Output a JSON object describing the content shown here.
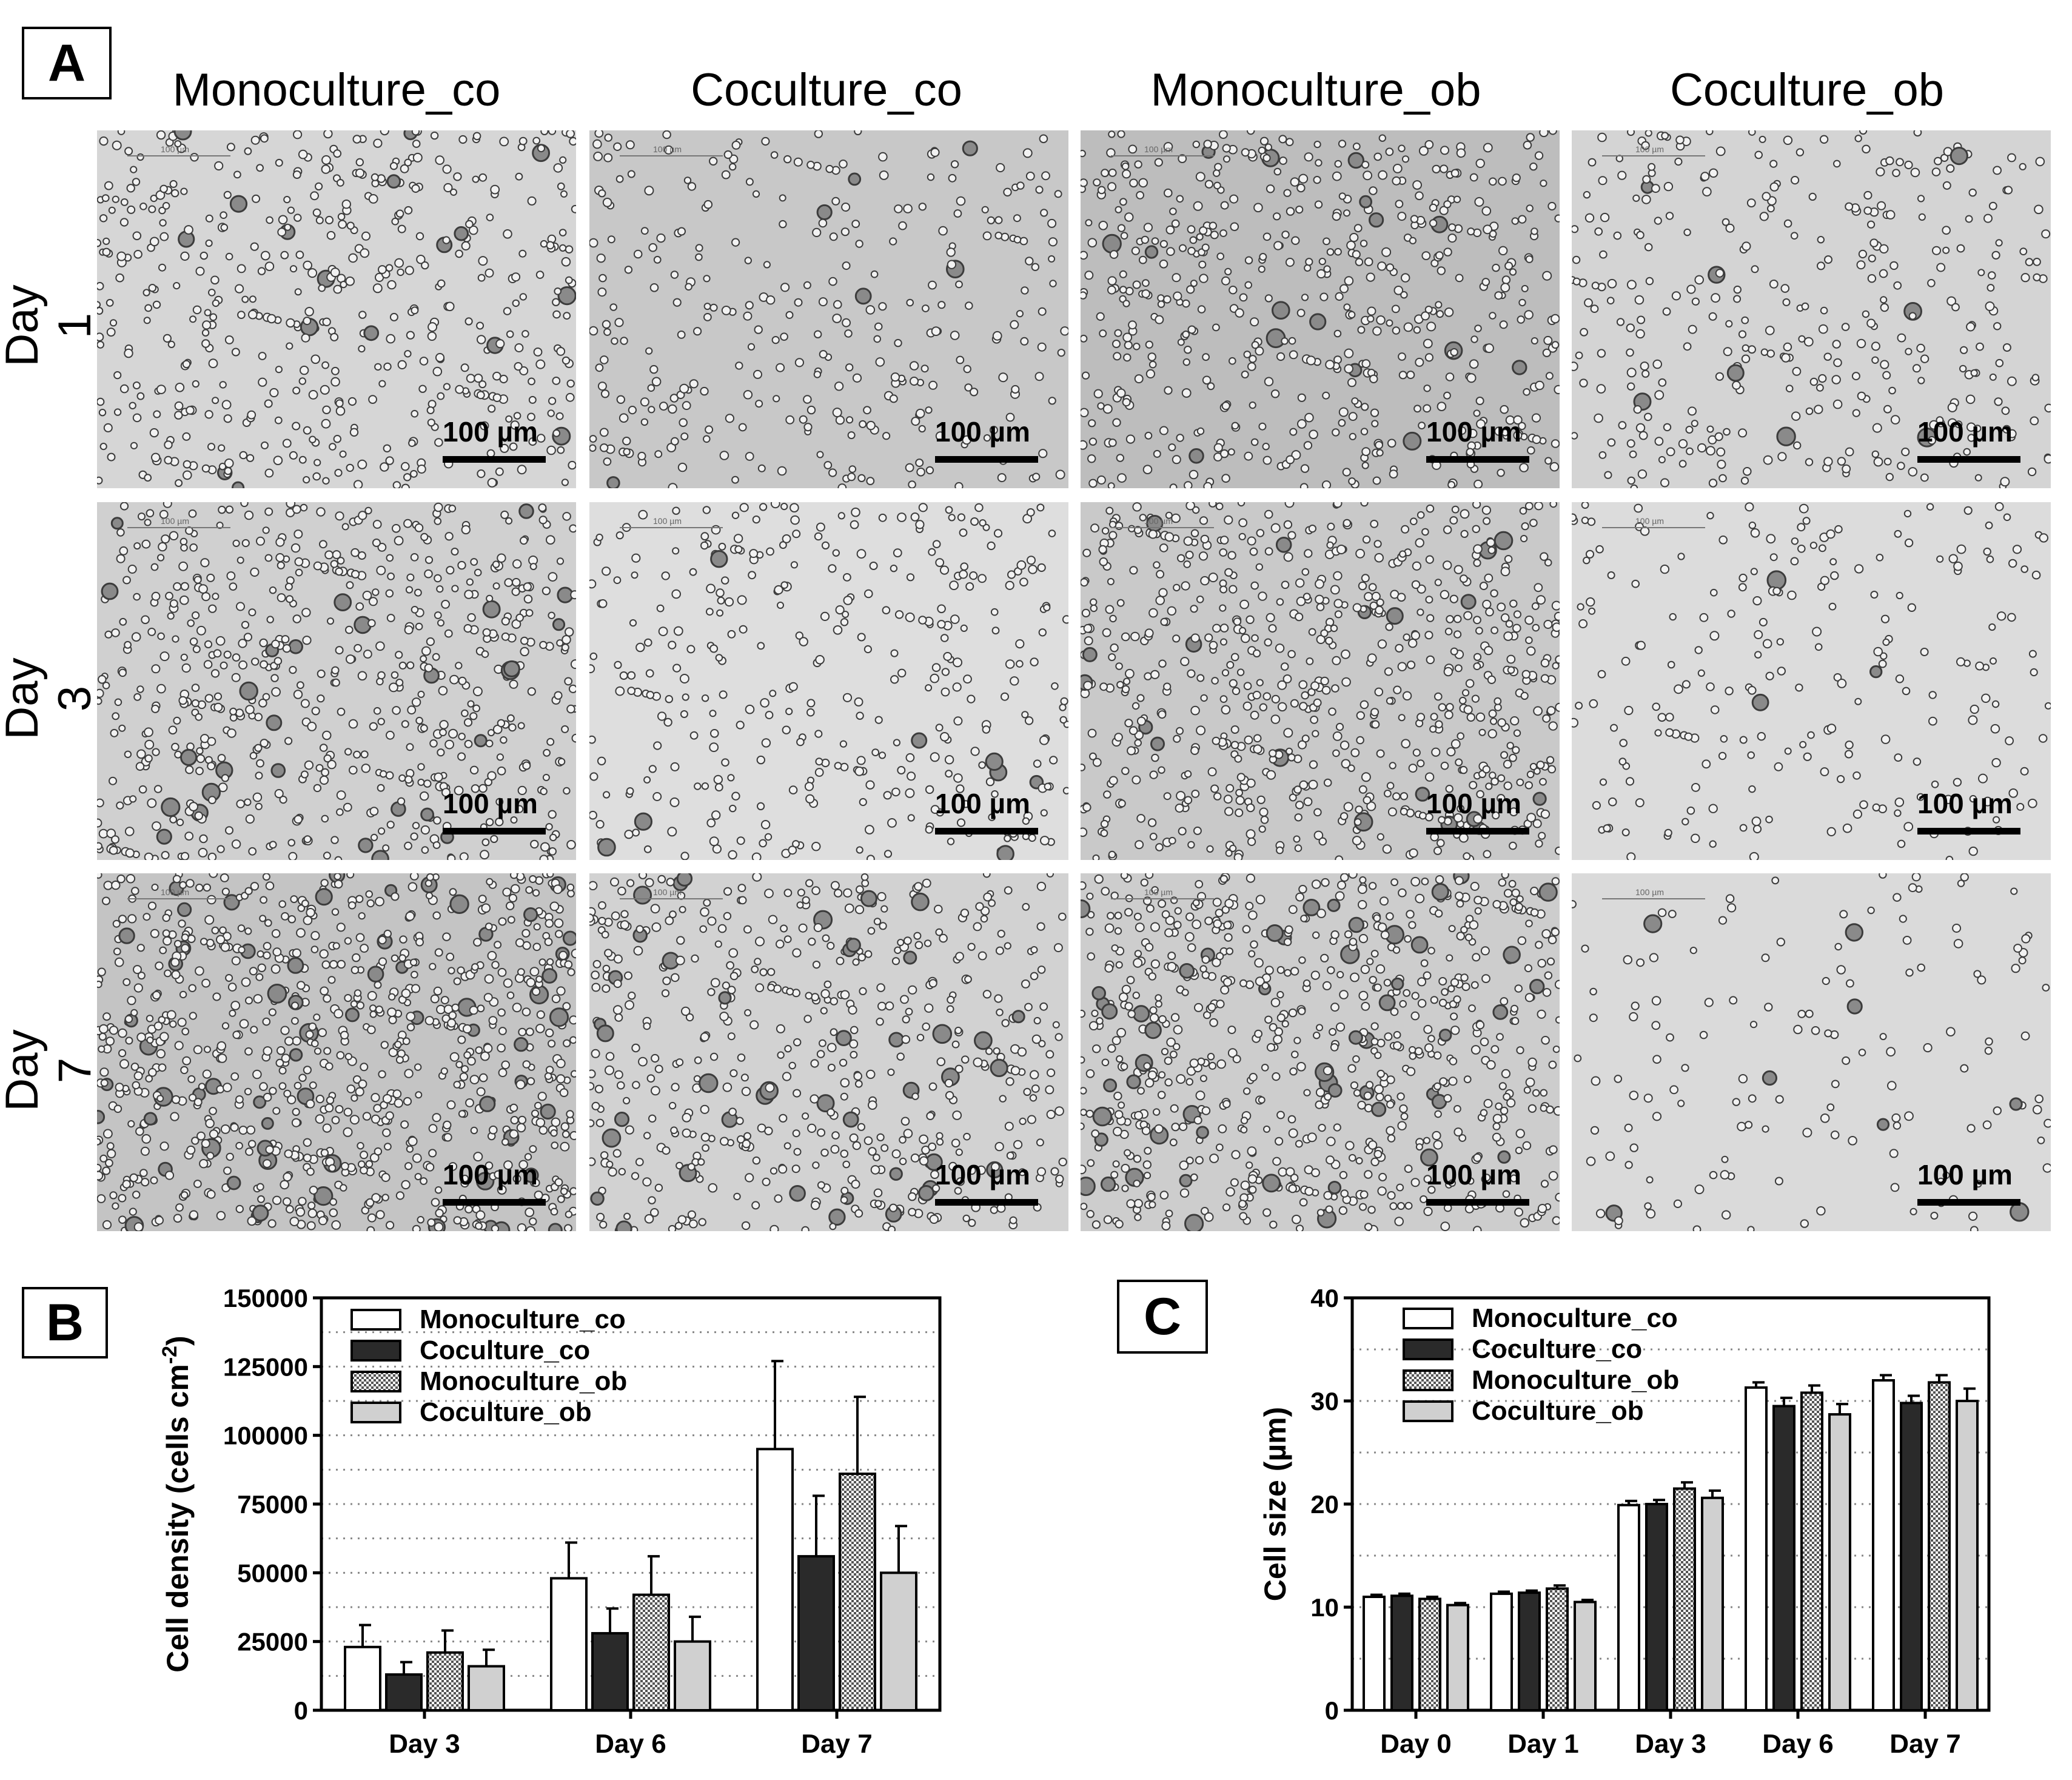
{
  "panel_a": {
    "letter": "A",
    "columns": [
      "Monoculture_co",
      "Coculture_co",
      "Monoculture_ob",
      "Coculture_ob"
    ],
    "rows": [
      "Day 1",
      "Day 3",
      "Day 7"
    ],
    "scale_bar_label": "100 µm",
    "tiny_scale_label": "100 µm"
  },
  "panel_b": {
    "letter": "B"
  },
  "panel_c": {
    "letter": "C"
  },
  "chart_data": [
    {
      "type": "bar",
      "panel": "B",
      "categories": [
        "Day 3",
        "Day 6",
        "Day 7"
      ],
      "ylabel": "Cell density (cells cm",
      "ylabel_sup": "-2",
      "ylabel_end": ")",
      "ylim": [
        0,
        150000
      ],
      "yticks": [
        "0",
        "25000",
        "50000",
        "75000",
        "100000",
        "125000",
        "150000"
      ],
      "ytick_values": [
        0,
        25000,
        50000,
        75000,
        100000,
        125000,
        150000
      ],
      "grid": "dotted horizontal",
      "legend_position": "top-left",
      "series": [
        {
          "name": "Monoculture_co",
          "values": [
            23000,
            48000,
            95000
          ],
          "errors": [
            8000,
            13000,
            32000
          ]
        },
        {
          "name": "Coculture_co",
          "values": [
            13000,
            28000,
            56000
          ],
          "errors": [
            4500,
            9000,
            22000
          ]
        },
        {
          "name": "Monoculture_ob",
          "values": [
            21000,
            42000,
            86000
          ],
          "errors": [
            8000,
            14000,
            28000
          ]
        },
        {
          "name": "Coculture_ob",
          "values": [
            16000,
            25000,
            50000
          ],
          "errors": [
            6000,
            9000,
            17000
          ]
        }
      ]
    },
    {
      "type": "bar",
      "panel": "C",
      "categories": [
        "Day 0",
        "Day 1",
        "Day 3",
        "Day 6",
        "Day 7"
      ],
      "ylabel": "Cell size (µm)",
      "ylim": [
        0,
        40
      ],
      "yticks": [
        "0",
        "10",
        "20",
        "30",
        "40"
      ],
      "ytick_values": [
        0,
        10,
        20,
        30,
        40
      ],
      "grid": "dotted horizontal",
      "legend_position": "top-left",
      "series": [
        {
          "name": "Monoculture_co",
          "values": [
            11.0,
            11.3,
            19.9,
            31.3,
            32.0
          ],
          "errors": [
            0.2,
            0.2,
            0.4,
            0.5,
            0.5
          ]
        },
        {
          "name": "Coculture_co",
          "values": [
            11.1,
            11.4,
            20.0,
            29.5,
            29.8
          ],
          "errors": [
            0.2,
            0.2,
            0.4,
            0.8,
            0.7
          ]
        },
        {
          "name": "Monoculture_ob",
          "values": [
            10.8,
            11.8,
            21.5,
            30.8,
            31.8
          ],
          "errors": [
            0.2,
            0.3,
            0.6,
            0.7,
            0.7
          ]
        },
        {
          "name": "Coculture_ob",
          "values": [
            10.2,
            10.5,
            20.6,
            28.7,
            30.0
          ],
          "errors": [
            0.2,
            0.2,
            0.7,
            1.0,
            1.2
          ]
        }
      ]
    }
  ],
  "colors": {
    "Monoculture_co": "#ffffff",
    "Coculture_co": "#2a2a2a",
    "Monoculture_ob": "checker",
    "Coculture_ob": "#d0d0d0"
  }
}
